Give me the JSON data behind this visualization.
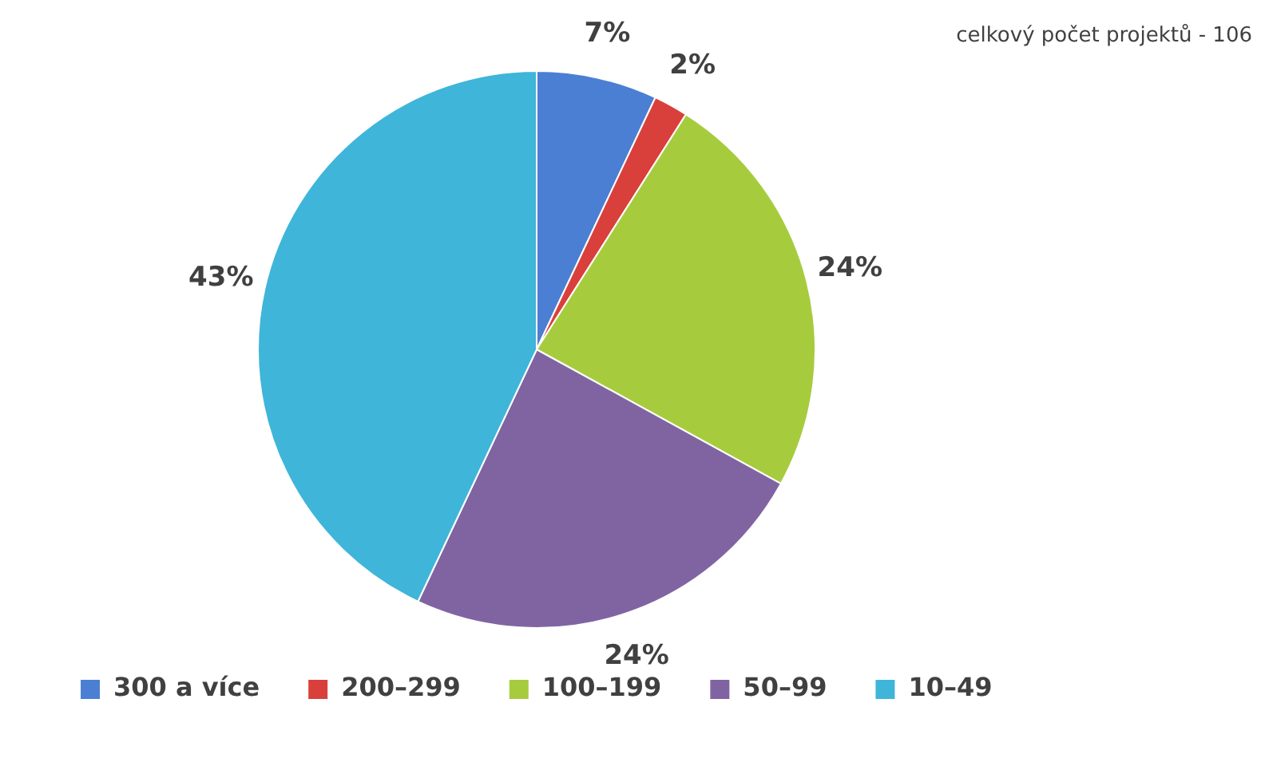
{
  "chart_data": {
    "type": "pie",
    "categories": [
      "300 a více",
      "200–299",
      "100–199",
      "50–99",
      "10–49"
    ],
    "values": [
      7,
      2,
      24,
      24,
      43
    ],
    "colors": [
      "#4a7fd4",
      "#d9403b",
      "#a6cc3e",
      "#8064a2",
      "#3fb5d9"
    ],
    "value_labels": [
      "7%",
      "2%",
      "24%",
      "24%",
      "43%"
    ],
    "legend": "bottom",
    "annotations": [
      "celkový počet projektů - 106"
    ]
  }
}
